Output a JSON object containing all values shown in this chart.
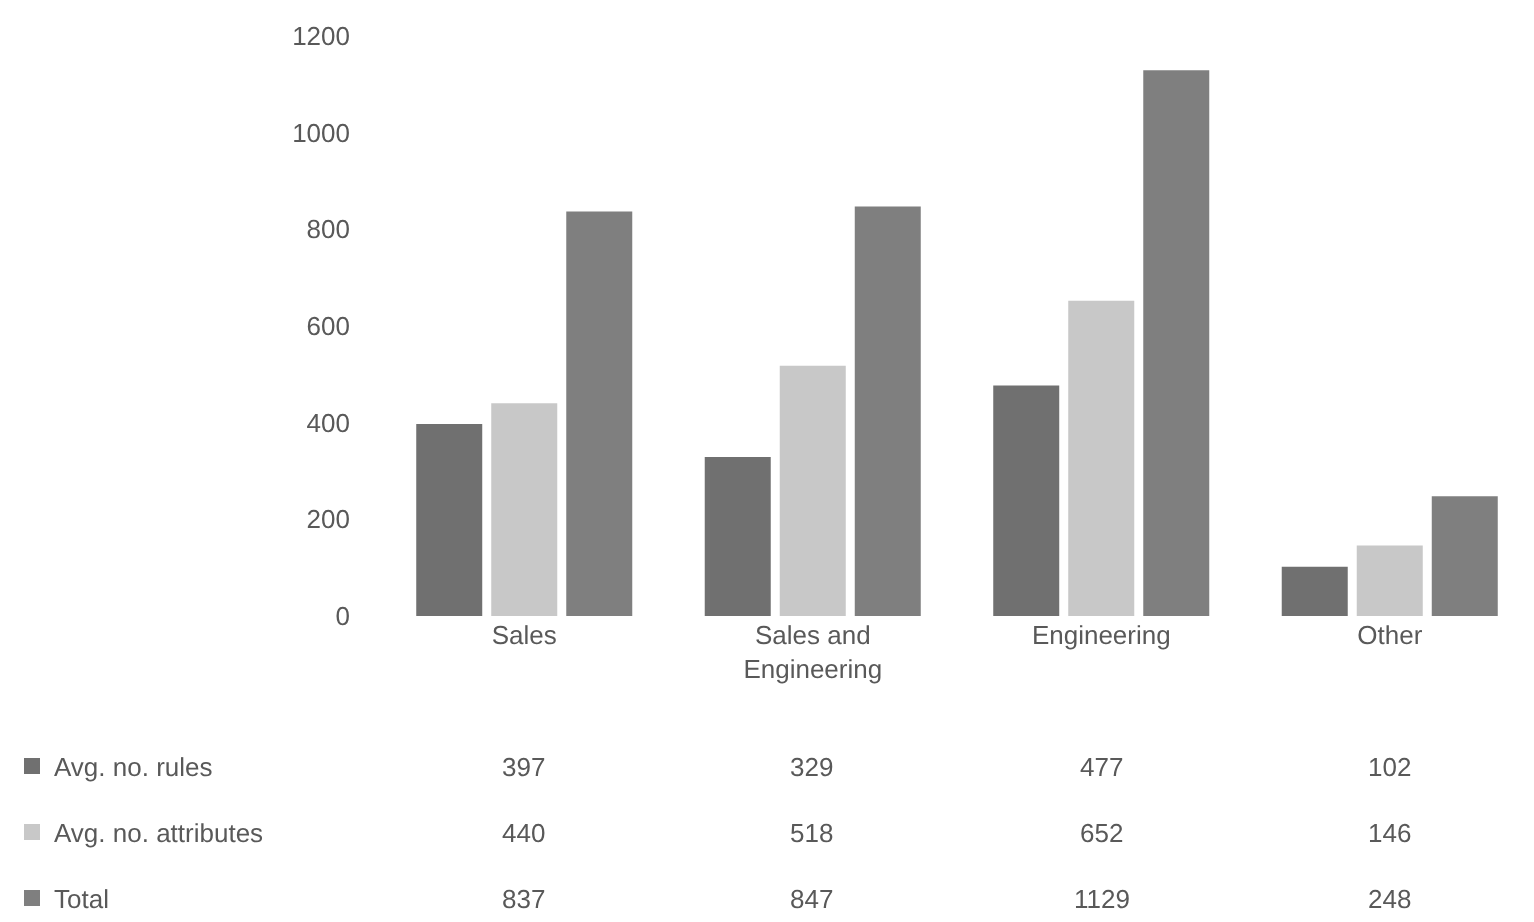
{
  "chart_data": {
    "type": "bar",
    "categories": [
      "Sales",
      "Sales and Engineering",
      "Engineering",
      "Other"
    ],
    "series": [
      {
        "name": "Avg. no. rules",
        "color": "#707070",
        "values": [
          397,
          329,
          477,
          102
        ]
      },
      {
        "name": "Avg. no. attributes",
        "color": "#c8c8c8",
        "values": [
          440,
          518,
          652,
          146
        ]
      },
      {
        "name": "Total",
        "color": "#7f7f7f",
        "values": [
          837,
          847,
          1129,
          248
        ]
      }
    ],
    "ylim": [
      0,
      1200
    ],
    "yticks": [
      0,
      200,
      400,
      600,
      800,
      1000,
      1200
    ],
    "grid": false,
    "legend": "bottom",
    "data_labels": true
  }
}
